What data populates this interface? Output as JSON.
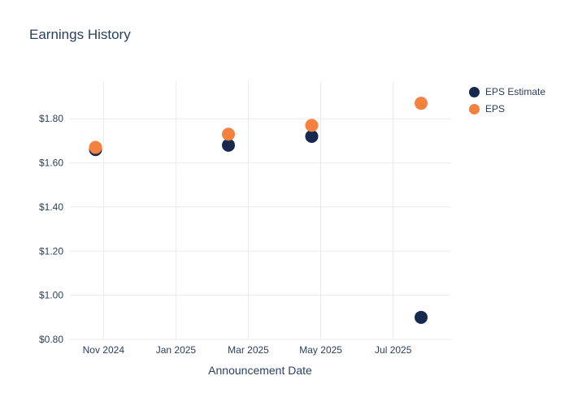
{
  "chart_data": {
    "type": "scatter",
    "title": "Earnings History",
    "xlabel": "Announcement Date",
    "ylabel": "",
    "x_tick_labels": [
      "Nov 2024",
      "Jan 2025",
      "Mar 2025",
      "May 2025",
      "Jul 2025"
    ],
    "x_tick_positions": [
      0,
      2,
      4,
      6,
      8
    ],
    "xlim": [
      -0.95,
      9.6
    ],
    "y_ticks": [
      0.8,
      1.0,
      1.2,
      1.4,
      1.6,
      1.8
    ],
    "y_tick_labels": [
      "$0.80",
      "$1.00",
      "$1.20",
      "$1.40",
      "$1.60",
      "$1.80"
    ],
    "ylim": [
      0.8,
      1.97
    ],
    "grid": true,
    "grid_color": "#ebebeb",
    "text_color": "#2a3f5f",
    "legend_position": "right",
    "marker_radius": 8,
    "series": [
      {
        "name": "EPS Estimate",
        "color": "#17294e",
        "x": [
          -0.22,
          3.45,
          5.75,
          8.77
        ],
        "x_dates": [
          "Oct 2024",
          "Feb 2025",
          "Apr 2025",
          "Aug 2025"
        ],
        "values": [
          1.66,
          1.68,
          1.72,
          0.9
        ]
      },
      {
        "name": "EPS",
        "color": "#f5813f",
        "x": [
          -0.22,
          3.45,
          5.75,
          8.77
        ],
        "x_dates": [
          "Oct 2024",
          "Feb 2025",
          "Apr 2025",
          "Aug 2025"
        ],
        "values": [
          1.67,
          1.73,
          1.77,
          1.87
        ]
      }
    ]
  }
}
